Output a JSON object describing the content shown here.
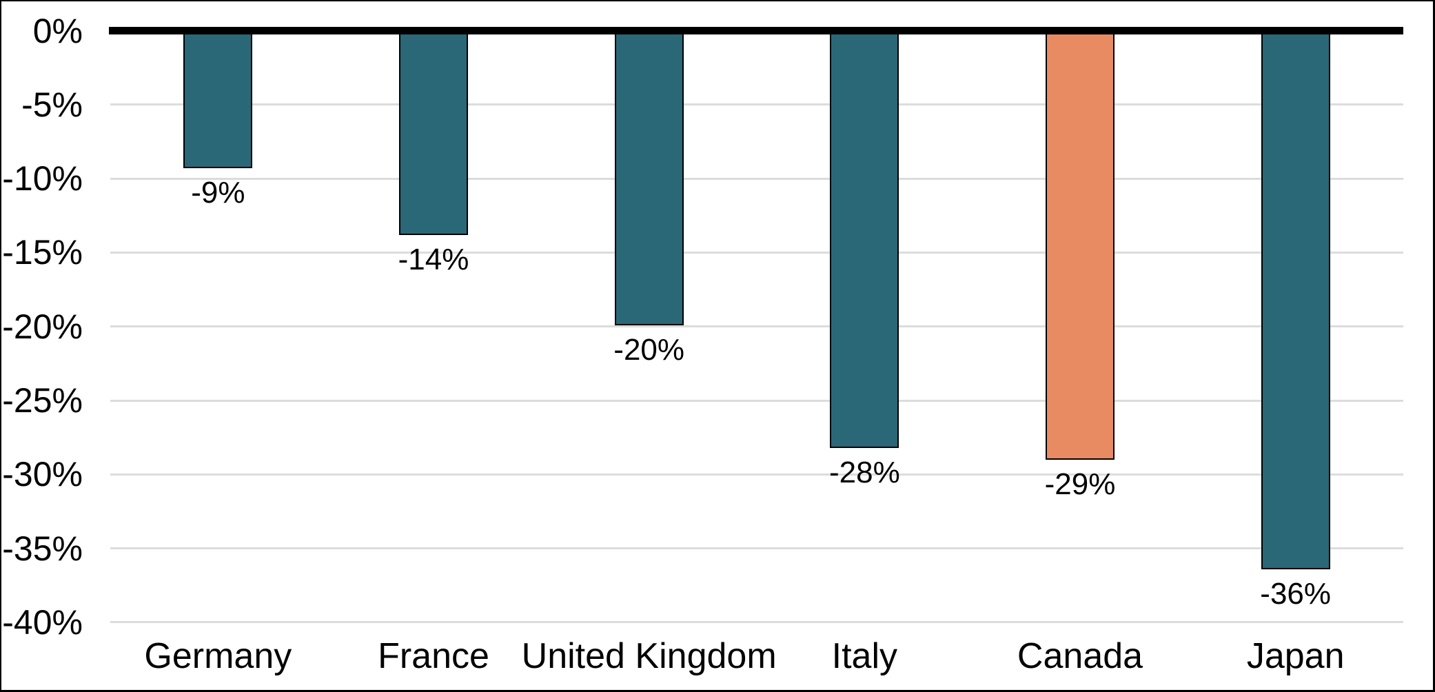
{
  "chart_data": {
    "type": "bar",
    "title": "",
    "xlabel": "",
    "ylabel": "",
    "categories": [
      "Germany",
      "France",
      "United Kingdom",
      "Italy",
      "Canada",
      "Japan"
    ],
    "values": [
      -9,
      -14,
      -20,
      -28,
      -29,
      -36
    ],
    "values_precise": [
      -9.3,
      -13.8,
      -19.9,
      -28.2,
      -29.0,
      -36.4
    ],
    "bar_labels": [
      "-9%",
      "-14%",
      "-20%",
      "-28%",
      "-29%",
      "-36%"
    ],
    "y_ticks": [
      {
        "label": "0%",
        "value": 0
      },
      {
        "label": "-5%",
        "value": -5
      },
      {
        "label": "-10%",
        "value": -10
      },
      {
        "label": "-15%",
        "value": -15
      },
      {
        "label": "-20%",
        "value": -20
      },
      {
        "label": "-25%",
        "value": -25
      },
      {
        "label": "-30%",
        "value": -30
      },
      {
        "label": "-35%",
        "value": -35
      },
      {
        "label": "-40%",
        "value": -40
      }
    ],
    "ylim": [
      -40,
      0
    ],
    "grid": true,
    "legend": false,
    "highlight_index": 4,
    "colors": {
      "bar_default": "#2A6877",
      "bar_highlight": "#E88B63",
      "bar_border": "#000000",
      "gridline": "#DCDCDC",
      "zero_axis_line": "#000000",
      "text": "#000000",
      "background": "#FFFFFF",
      "frame_border": "#000000"
    }
  }
}
